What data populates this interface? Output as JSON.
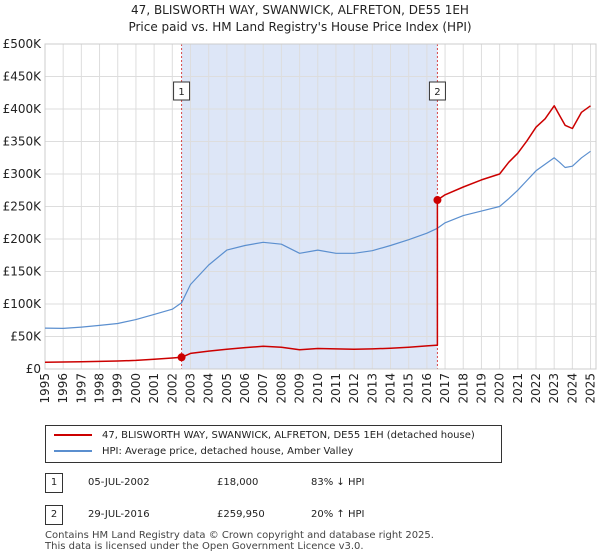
{
  "title_line1": "47, BLISWORTH WAY, SWANWICK, ALFRETON, DE55 1EH",
  "title_line2": "Price paid vs. HM Land Registry's House Price Index (HPI)",
  "colors": {
    "property": "#cc0000",
    "hpi": "#5b8fcf",
    "shade": "#dde6f7",
    "grid": "#dddddd"
  },
  "chart_data": {
    "type": "line",
    "title": "47, BLISWORTH WAY, SWANWICK, ALFRETON, DE55 1EH — Price paid vs. HM Land Registry's House Price Index (HPI)",
    "xlabel": "",
    "ylabel": "",
    "xlim": [
      1995,
      2025.3
    ],
    "ylim": [
      0,
      500000
    ],
    "x_ticks": [
      1995,
      1996,
      1997,
      1998,
      1999,
      2000,
      2001,
      2002,
      2003,
      2004,
      2005,
      2006,
      2007,
      2008,
      2009,
      2010,
      2011,
      2012,
      2013,
      2014,
      2015,
      2016,
      2017,
      2018,
      2019,
      2020,
      2021,
      2022,
      2023,
      2024,
      2025
    ],
    "y_ticks": [
      {
        "value": 0,
        "label": "£0"
      },
      {
        "value": 50000,
        "label": "£50K"
      },
      {
        "value": 100000,
        "label": "£100K"
      },
      {
        "value": 150000,
        "label": "£150K"
      },
      {
        "value": 200000,
        "label": "£200K"
      },
      {
        "value": 250000,
        "label": "£250K"
      },
      {
        "value": 300000,
        "label": "£300K"
      },
      {
        "value": 350000,
        "label": "£350K"
      },
      {
        "value": 400000,
        "label": "£400K"
      },
      {
        "value": 450000,
        "label": "£450K"
      },
      {
        "value": 500000,
        "label": "£500K"
      }
    ],
    "grid": true,
    "shaded_range": [
      2002.51,
      2016.58
    ],
    "series": [
      {
        "name": "47, BLISWORTH WAY, SWANWICK, ALFRETON, DE55 1EH (detached house)",
        "color": "#cc0000",
        "x": [
          1995,
          1996,
          1997,
          1998,
          1999,
          2000,
          2001,
          2002,
          2002.51,
          2002.51,
          2003,
          2004,
          2005,
          2006,
          2007,
          2008,
          2009,
          2010,
          2011,
          2012,
          2013,
          2014,
          2015,
          2016,
          2016.5,
          2016.58,
          2016.58,
          2017,
          2018,
          2019,
          2020,
          2020.5,
          2021,
          2021.5,
          2022,
          2022.5,
          2023,
          2023.3,
          2023.6,
          2024,
          2024.5,
          2025
        ],
        "values": [
          10500,
          10800,
          11200,
          11700,
          12300,
          13300,
          15000,
          16900,
          18000,
          18000,
          24000,
          27500,
          30500,
          33000,
          35000,
          33500,
          29500,
          31500,
          31000,
          30500,
          31000,
          32000,
          33500,
          35500,
          36400,
          36400,
          259950,
          268000,
          280000,
          291000,
          300000,
          318000,
          332000,
          351000,
          372000,
          385000,
          405000,
          390000,
          375000,
          370000,
          395000,
          405000
        ]
      },
      {
        "name": "HPI: Average price, detached house, Amber Valley",
        "color": "#5b8fcf",
        "x": [
          1995,
          1996,
          1997,
          1998,
          1999,
          2000,
          2001,
          2002,
          2002.51,
          2003,
          2004,
          2005,
          2006,
          2007,
          2008,
          2009,
          2010,
          2011,
          2012,
          2013,
          2014,
          2015,
          2016,
          2016.58,
          2017,
          2018,
          2019,
          2020,
          2020.5,
          2021,
          2021.5,
          2022,
          2022.5,
          2023,
          2023.3,
          2023.6,
          2024,
          2024.5,
          2025
        ],
        "values": [
          63000,
          62500,
          64500,
          67000,
          70000,
          76000,
          84000,
          92000,
          102000,
          130000,
          160000,
          183000,
          190000,
          195000,
          192000,
          178000,
          183000,
          178000,
          178000,
          182000,
          190000,
          199000,
          209000,
          216500,
          225000,
          236000,
          243000,
          250000,
          262000,
          275000,
          290000,
          305000,
          315000,
          325000,
          318000,
          310000,
          312000,
          325000,
          335000
        ]
      }
    ],
    "markers": [
      {
        "label": "1",
        "x": 2002.51,
        "y": 18000
      },
      {
        "label": "2",
        "x": 2016.58,
        "y": 259950
      }
    ]
  },
  "legend": {
    "property_label": "47, BLISWORTH WAY, SWANWICK, ALFRETON, DE55 1EH (detached house)",
    "hpi_label": "HPI: Average price, detached house, Amber Valley"
  },
  "sales": [
    {
      "num": "1",
      "date": "05-JUL-2002",
      "price": "£18,000",
      "hpi": "83% ↓ HPI"
    },
    {
      "num": "2",
      "date": "29-JUL-2016",
      "price": "£259,950",
      "hpi": "20% ↑ HPI"
    }
  ],
  "footer": {
    "line1": "Contains HM Land Registry data © Crown copyright and database right 2025.",
    "line2": "This data is licensed under the Open Government Licence v3.0."
  }
}
